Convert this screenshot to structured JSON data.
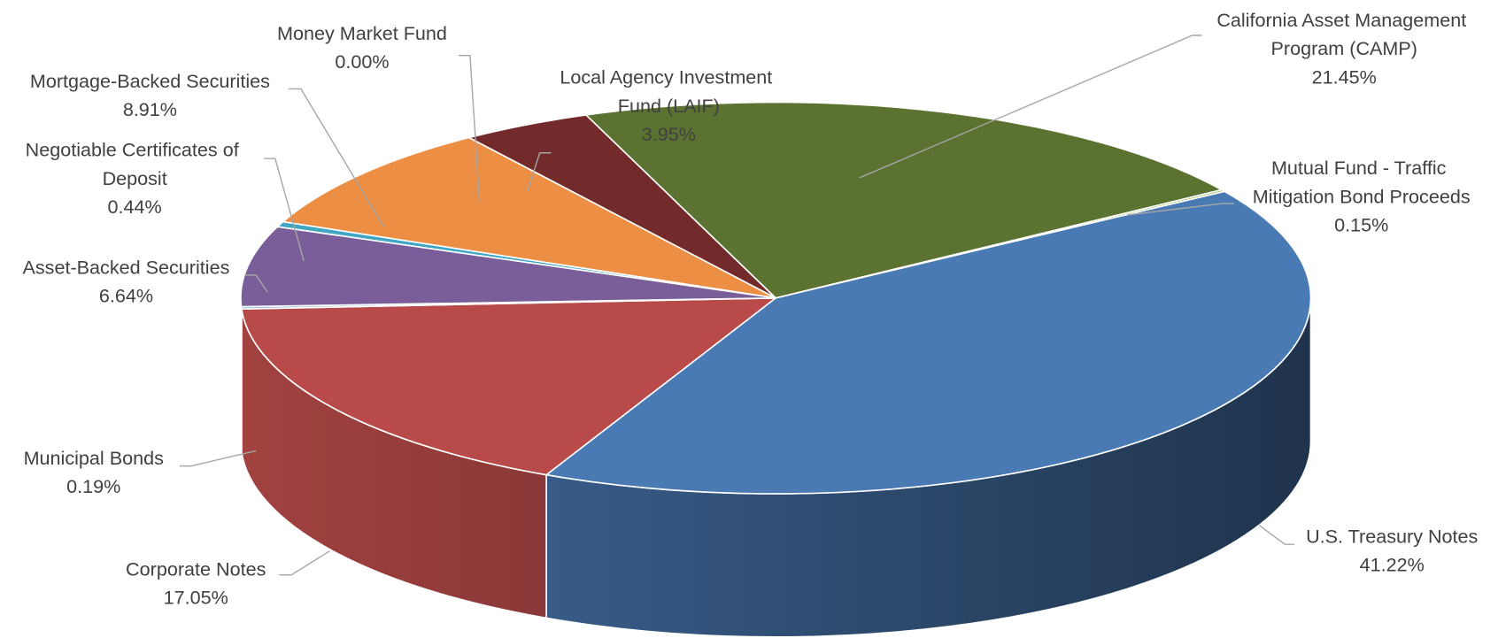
{
  "chart_data": {
    "type": "pie3d",
    "categories": [
      "U.S. Treasury Notes",
      "Corporate Notes",
      "Municipal Bonds",
      "Asset-Backed Securities",
      "Negotiable Certificates of Deposit",
      "Mortgage-Backed Securities",
      "Money Market Fund",
      "Local Agency Investment Fund (LAIF)",
      "California Asset Management Program (CAMP)",
      "Mutual Fund - Traffic Mitigation Bond Proceeds"
    ],
    "values": [
      41.22,
      17.05,
      0.19,
      6.64,
      0.44,
      8.91,
      0.0,
      3.95,
      21.45,
      0.15
    ],
    "value_labels": [
      "41.22%",
      "17.05%",
      "0.19%",
      "6.64%",
      "0.44%",
      "8.91%",
      "0.00%",
      "3.95%",
      "21.45%",
      "0.15%"
    ],
    "colors": [
      "#4a7ab4",
      "#b84b4a",
      "#8db3e2",
      "#7a5e99",
      "#3fa7c4",
      "#ec8e43",
      "#2c4d75",
      "#722a2a",
      "#5b7230",
      "#9bbb59"
    ]
  }
}
